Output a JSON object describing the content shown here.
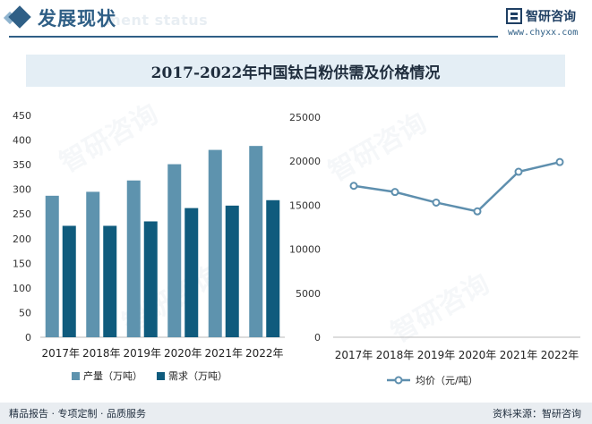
{
  "header": {
    "section_title": "发展现状",
    "section_subtitle": "ment status",
    "logo_name": "智研咨询",
    "logo_url": "www.chyxx.com"
  },
  "watermark_text": "智研咨询",
  "footer": {
    "left": "精品报告 · 专项定制 · 品质服务",
    "right": "资料来源：智研咨询"
  },
  "colors": {
    "brand": "#2f5f86",
    "production": "#5e93ae",
    "demand": "#0f5b7d",
    "price_line": "#5e8fae"
  },
  "chart_data": [
    {
      "type": "bar",
      "title": "2017-2022年中国钛白粉供需及价格情况",
      "categories": [
        "2017年",
        "2018年",
        "2019年",
        "2020年",
        "2021年",
        "2022年"
      ],
      "series": [
        {
          "name": "产量（万吨）",
          "values": [
            287,
            295,
            318,
            351,
            380,
            388
          ]
        },
        {
          "name": "需求（万吨）",
          "values": [
            226,
            226,
            235,
            262,
            267,
            278
          ]
        }
      ],
      "ylim": [
        0,
        450
      ],
      "yticks": [
        0,
        50,
        100,
        150,
        200,
        250,
        300,
        350,
        400,
        450
      ],
      "xlabel": "",
      "ylabel": "",
      "legend": "bottom",
      "grid": false
    },
    {
      "type": "line",
      "categories": [
        "2017年",
        "2018年",
        "2019年",
        "2020年",
        "2021年",
        "2022年"
      ],
      "series": [
        {
          "name": "均价（元/吨）",
          "values": [
            17200,
            16500,
            15300,
            14300,
            18800,
            19900
          ]
        }
      ],
      "ylim": [
        0,
        25000
      ],
      "yticks": [
        0,
        5000,
        10000,
        15000,
        20000,
        25000
      ],
      "xlabel": "",
      "ylabel": "",
      "legend": "bottom",
      "grid": false
    }
  ]
}
